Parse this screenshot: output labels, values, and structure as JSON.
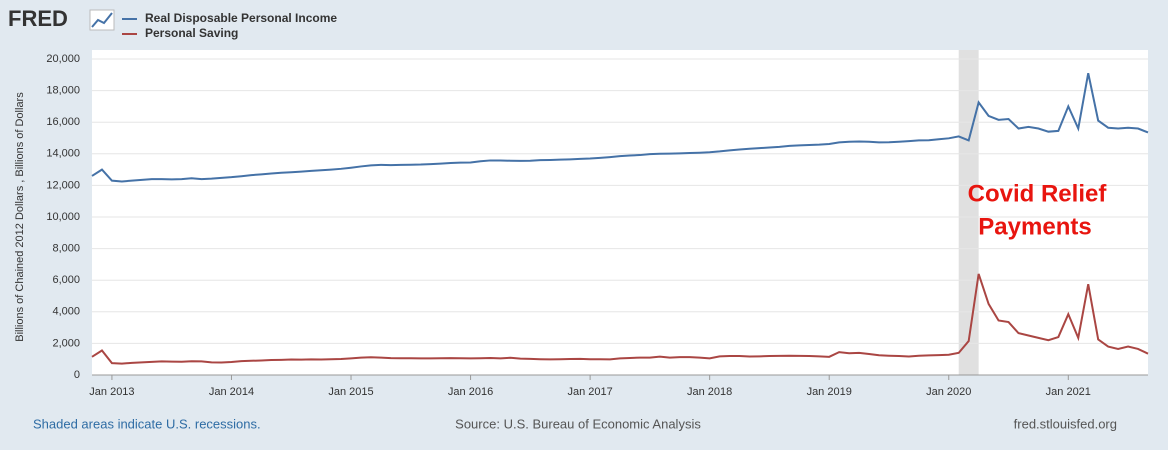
{
  "logo": "FRED",
  "chart_data": {
    "type": "line",
    "y_label": "Billions of Chained 2012 Dollars , Billions of Dollars",
    "annotation": [
      "Covid Relief",
      "Payments"
    ],
    "recessions": [
      {
        "start": "2020-02",
        "end": "2020-04"
      }
    ],
    "xlim": [
      "2012-11",
      "2021-09"
    ],
    "xticks": [
      {
        "value": "2013-01",
        "label": "Jan 2013"
      },
      {
        "value": "2014-01",
        "label": "Jan 2014"
      },
      {
        "value": "2015-01",
        "label": "Jan 2015"
      },
      {
        "value": "2016-01",
        "label": "Jan 2016"
      },
      {
        "value": "2017-01",
        "label": "Jan 2017"
      },
      {
        "value": "2018-01",
        "label": "Jan 2018"
      },
      {
        "value": "2019-01",
        "label": "Jan 2019"
      },
      {
        "value": "2020-01",
        "label": "Jan 2020"
      },
      {
        "value": "2021-01",
        "label": "Jan 2021"
      }
    ],
    "ylim": [
      0,
      20000
    ],
    "yticks": [
      0,
      {
        "value": 2000,
        "label": "2,000"
      },
      {
        "value": 4000,
        "label": "4,000"
      },
      {
        "value": 6000,
        "label": "6,000"
      },
      {
        "value": 8000,
        "label": "8,000"
      },
      {
        "value": 10000,
        "label": "10,000"
      },
      {
        "value": 12000,
        "label": "12,000"
      },
      {
        "value": 14000,
        "label": "14,000"
      },
      {
        "value": 16000,
        "label": "16,000"
      },
      {
        "value": 18000,
        "label": "18,000"
      },
      {
        "value": 20000,
        "label": "20,000"
      }
    ],
    "grid": true,
    "x": [
      "2012-11",
      "2012-12",
      "2013-01",
      "2013-02",
      "2013-03",
      "2013-04",
      "2013-05",
      "2013-06",
      "2013-07",
      "2013-08",
      "2013-09",
      "2013-10",
      "2013-11",
      "2013-12",
      "2014-01",
      "2014-02",
      "2014-03",
      "2014-04",
      "2014-05",
      "2014-06",
      "2014-07",
      "2014-08",
      "2014-09",
      "2014-10",
      "2014-11",
      "2014-12",
      "2015-01",
      "2015-02",
      "2015-03",
      "2015-04",
      "2015-05",
      "2015-06",
      "2015-07",
      "2015-08",
      "2015-09",
      "2015-10",
      "2015-11",
      "2015-12",
      "2016-01",
      "2016-02",
      "2016-03",
      "2016-04",
      "2016-05",
      "2016-06",
      "2016-07",
      "2016-08",
      "2016-09",
      "2016-10",
      "2016-11",
      "2016-12",
      "2017-01",
      "2017-02",
      "2017-03",
      "2017-04",
      "2017-05",
      "2017-06",
      "2017-07",
      "2017-08",
      "2017-09",
      "2017-10",
      "2017-11",
      "2017-12",
      "2018-01",
      "2018-02",
      "2018-03",
      "2018-04",
      "2018-05",
      "2018-06",
      "2018-07",
      "2018-08",
      "2018-09",
      "2018-10",
      "2018-11",
      "2018-12",
      "2019-01",
      "2019-02",
      "2019-03",
      "2019-04",
      "2019-05",
      "2019-06",
      "2019-07",
      "2019-08",
      "2019-09",
      "2019-10",
      "2019-11",
      "2019-12",
      "2020-01",
      "2020-02",
      "2020-03",
      "2020-04",
      "2020-05",
      "2020-06",
      "2020-07",
      "2020-08",
      "2020-09",
      "2020-10",
      "2020-11",
      "2020-12",
      "2021-01",
      "2021-02",
      "2021-03",
      "2021-04",
      "2021-05",
      "2021-06",
      "2021-07",
      "2021-08",
      "2021-09"
    ],
    "series": [
      {
        "name": "Real Disposable Personal Income",
        "color": "#4572a7",
        "values": [
          12600,
          13000,
          12300,
          12250,
          12300,
          12350,
          12400,
          12400,
          12380,
          12400,
          12450,
          12400,
          12430,
          12480,
          12520,
          12580,
          12650,
          12700,
          12750,
          12800,
          12830,
          12870,
          12920,
          12960,
          13000,
          13050,
          13120,
          13200,
          13270,
          13300,
          13280,
          13300,
          13310,
          13320,
          13350,
          13380,
          13420,
          13440,
          13450,
          13530,
          13580,
          13580,
          13560,
          13550,
          13560,
          13600,
          13610,
          13630,
          13650,
          13680,
          13700,
          13740,
          13790,
          13850,
          13890,
          13920,
          13980,
          14000,
          14010,
          14030,
          14050,
          14070,
          14100,
          14150,
          14220,
          14270,
          14320,
          14360,
          14400,
          14440,
          14500,
          14530,
          14560,
          14580,
          14620,
          14720,
          14760,
          14780,
          14760,
          14720,
          14730,
          14760,
          14800,
          14850,
          14860,
          14920,
          14980,
          15100,
          14850,
          17250,
          16400,
          16150,
          16200,
          15600,
          15700,
          15600,
          15400,
          15450,
          17000,
          15600,
          19100,
          16100,
          15650,
          15600,
          15650,
          15600,
          15350
        ]
      },
      {
        "name": "Personal Saving",
        "color": "#aa4643",
        "values": [
          1150,
          1550,
          750,
          720,
          770,
          800,
          830,
          860,
          850,
          840,
          870,
          860,
          800,
          790,
          820,
          880,
          900,
          920,
          950,
          960,
          980,
          970,
          990,
          980,
          1000,
          1010,
          1050,
          1100,
          1120,
          1100,
          1070,
          1060,
          1060,
          1050,
          1050,
          1060,
          1070,
          1060,
          1050,
          1060,
          1080,
          1050,
          1090,
          1040,
          1020,
          1000,
          990,
          1000,
          1010,
          1020,
          1000,
          1000,
          990,
          1050,
          1080,
          1100,
          1100,
          1160,
          1100,
          1130,
          1130,
          1100,
          1050,
          1180,
          1200,
          1200,
          1170,
          1180,
          1200,
          1210,
          1220,
          1210,
          1200,
          1180,
          1150,
          1450,
          1380,
          1400,
          1330,
          1250,
          1220,
          1200,
          1170,
          1220,
          1240,
          1260,
          1280,
          1400,
          2150,
          6400,
          4500,
          3450,
          3350,
          2650,
          2500,
          2350,
          2200,
          2400,
          3850,
          2350,
          5750,
          2250,
          1800,
          1650,
          1800,
          1650,
          1350
        ]
      }
    ]
  },
  "footer": {
    "recession_note": "Shaded areas indicate U.S. recessions.",
    "source": "Source: U.S. Bureau of Economic Analysis",
    "site": "fred.stlouisfed.org"
  }
}
